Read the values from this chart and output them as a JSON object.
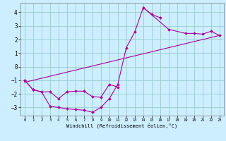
{
  "xlabel": "Windchill (Refroidissement éolien,°C)",
  "xlim": [
    -0.5,
    23.5
  ],
  "ylim": [
    -3.6,
    4.7
  ],
  "yticks": [
    -3,
    -2,
    -1,
    0,
    1,
    2,
    3,
    4
  ],
  "xticks": [
    0,
    1,
    2,
    3,
    4,
    5,
    6,
    7,
    8,
    9,
    10,
    11,
    12,
    13,
    14,
    15,
    16,
    17,
    18,
    19,
    20,
    21,
    22,
    23
  ],
  "bg_color": "#cceeff",
  "line_color": "#aa0099",
  "grid_color": "#99cccc",
  "line1_x": [
    0,
    1,
    2,
    3,
    4,
    5,
    6,
    7,
    8,
    9,
    10,
    11,
    12,
    13,
    14,
    15,
    16
  ],
  "line1_y": [
    -1.0,
    -1.7,
    -1.85,
    -2.9,
    -3.0,
    -3.1,
    -3.15,
    -3.2,
    -3.35,
    -3.0,
    -2.35,
    -1.3,
    1.4,
    2.55,
    4.35,
    3.85,
    3.6
  ],
  "line2_x": [
    0,
    1,
    2,
    3,
    4,
    5,
    6,
    7,
    8,
    9,
    10,
    11,
    14,
    17,
    19,
    20,
    21,
    22,
    23
  ],
  "line2_y": [
    -1.0,
    -1.7,
    -1.85,
    -1.85,
    -2.35,
    -1.85,
    -1.8,
    -1.8,
    -2.2,
    -2.25,
    -1.3,
    -1.5,
    4.35,
    2.75,
    2.45,
    2.45,
    2.4,
    2.6,
    2.3
  ],
  "line3_x": [
    0,
    23
  ],
  "line3_y": [
    -1.15,
    2.3
  ]
}
